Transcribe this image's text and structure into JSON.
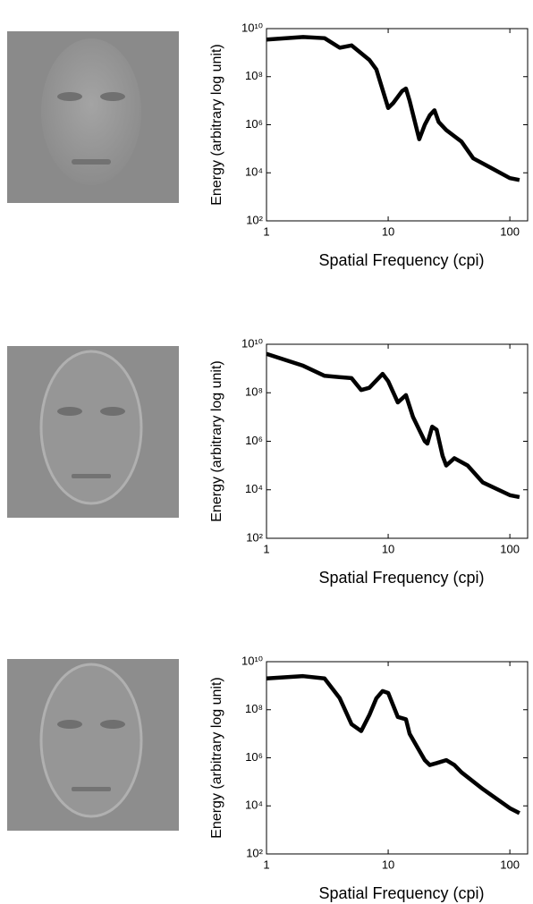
{
  "chart_data": [
    {
      "type": "line",
      "xlabel": "Spatial Frequency (cpi)",
      "ylabel": "Energy (arbitrary log unit)",
      "xscale": "log",
      "yscale": "log",
      "color": "#000000",
      "x": [
        1,
        2,
        3,
        4,
        5,
        7,
        8,
        10,
        11,
        13,
        14,
        15,
        18,
        20,
        22,
        24,
        26,
        30,
        40,
        50,
        70,
        100,
        120
      ],
      "values": [
        3500000000.0,
        4500000000.0,
        4000000000.0,
        1600000000.0,
        2000000000.0,
        500000000.0,
        200000000.0,
        5000000.0,
        8000000.0,
        25000000.0,
        32000000.0,
        10000000.0,
        250000.0,
        1000000.0,
        2500000.0,
        4000000.0,
        1300000.0,
        600000.0,
        200000.0,
        40000.0,
        16000.0,
        6000.0,
        5000.0
      ],
      "xlim": [
        1,
        140
      ],
      "ylim": [
        100,
        10000000000.0
      ],
      "xticks": [
        1,
        10,
        100
      ],
      "yticks": [
        {
          "value": 100,
          "label": "10²"
        },
        {
          "value": 10000,
          "label": "10⁴"
        },
        {
          "value": 1000000,
          "label": "10⁶"
        },
        {
          "value": 100000000,
          "label": "10⁸"
        },
        {
          "value": 10000000000,
          "label": "10¹⁰"
        }
      ]
    },
    {
      "type": "line",
      "xlabel": "Spatial Frequency (cpi)",
      "ylabel": "Energy (arbitrary log unit)",
      "xscale": "log",
      "yscale": "log",
      "color": "#000000",
      "x": [
        1,
        2,
        3,
        5,
        6,
        7,
        9,
        10,
        12,
        14,
        16,
        20,
        21,
        23,
        25,
        28,
        30,
        35,
        45,
        60,
        100,
        120
      ],
      "values": [
        4000000000.0,
        1300000000.0,
        500000000.0,
        400000000.0,
        130000000.0,
        160000000.0,
        600000000.0,
        300000000.0,
        40000000.0,
        80000000.0,
        10000000.0,
        1000000.0,
        800000.0,
        4000000.0,
        3000000.0,
        250000.0,
        100000.0,
        200000.0,
        100000.0,
        20000.0,
        6000.0,
        5000.0
      ],
      "xlim": [
        1,
        140
      ],
      "ylim": [
        100,
        10000000000.0
      ],
      "xticks": [
        1,
        10,
        100
      ],
      "yticks": [
        {
          "value": 100,
          "label": "10²"
        },
        {
          "value": 10000,
          "label": "10⁴"
        },
        {
          "value": 1000000,
          "label": "10⁶"
        },
        {
          "value": 100000000,
          "label": "10⁸"
        },
        {
          "value": 10000000000,
          "label": "10¹⁰"
        }
      ]
    },
    {
      "type": "line",
      "xlabel": "Spatial Frequency (cpi)",
      "ylabel": "Energy (arbitrary log unit)",
      "xscale": "log",
      "yscale": "log",
      "color": "#000000",
      "x": [
        1,
        2,
        3,
        4,
        5,
        6,
        7,
        8,
        9,
        10,
        12,
        14,
        15,
        18,
        20,
        22,
        25,
        30,
        35,
        40,
        60,
        100,
        120
      ],
      "values": [
        2000000000.0,
        2500000000.0,
        2000000000.0,
        300000000.0,
        25000000.0,
        13000000.0,
        60000000.0,
        300000000.0,
        600000000.0,
        500000000.0,
        50000000.0,
        40000000.0,
        10000000.0,
        2000000.0,
        800000.0,
        500000.0,
        600000.0,
        800000.0,
        500000.0,
        250000.0,
        50000.0,
        8000.0,
        5000.0
      ],
      "xlim": [
        1,
        140
      ],
      "ylim": [
        100,
        10000000000.0
      ],
      "xticks": [
        1,
        10,
        100
      ],
      "yticks": [
        {
          "value": 100,
          "label": "10²"
        },
        {
          "value": 10000,
          "label": "10⁴"
        },
        {
          "value": 1000000,
          "label": "10⁶"
        },
        {
          "value": 100000000,
          "label": "10⁸"
        },
        {
          "value": 10000000000,
          "label": "10¹⁰"
        }
      ]
    }
  ]
}
